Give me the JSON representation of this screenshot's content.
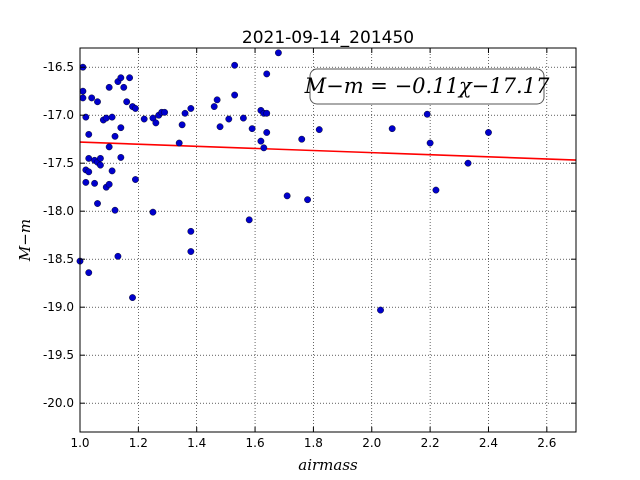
{
  "chart_data": {
    "type": "scatter",
    "title": "2021-09-14_201450",
    "xlabel": "airmass",
    "ylabel": "M−m",
    "xlim": [
      1.0,
      2.7
    ],
    "ylim": [
      -20.3,
      -16.3
    ],
    "y_inverted": true,
    "grid": true,
    "grid_style": "dotted",
    "x_ticks": [
      1.0,
      1.2,
      1.4,
      1.6,
      1.8,
      2.0,
      2.2,
      2.4,
      2.6
    ],
    "x_tick_labels": [
      "1.0",
      "1.2",
      "1.4",
      "1.6",
      "1.8",
      "2.0",
      "2.2",
      "2.4",
      "2.6"
    ],
    "y_ticks": [
      -16.5,
      -17.0,
      -17.5,
      -18.0,
      -18.5,
      -19.0,
      -19.5,
      -20.0
    ],
    "y_tick_labels": [
      "-16.5",
      "-17.0",
      "-17.5",
      "-18.0",
      "-18.5",
      "-19.0",
      "-19.5",
      "-20.0"
    ],
    "annotation": "M−m = −0.11χ−17.17",
    "annotation_position": "top-right",
    "fit_line": {
      "slope": -0.11,
      "intercept": -17.17,
      "color": "#ff0000"
    },
    "marker_color": "#0000cc",
    "series": [
      {
        "points": [
          [
            1.0,
            -18.52
          ],
          [
            1.01,
            -16.5
          ],
          [
            1.01,
            -16.75
          ],
          [
            1.01,
            -16.82
          ],
          [
            1.02,
            -17.57
          ],
          [
            1.02,
            -17.7
          ],
          [
            1.02,
            -17.02
          ],
          [
            1.03,
            -17.2
          ],
          [
            1.03,
            -17.45
          ],
          [
            1.03,
            -17.59
          ],
          [
            1.03,
            -18.64
          ],
          [
            1.04,
            -16.82
          ],
          [
            1.05,
            -17.47
          ],
          [
            1.05,
            -17.71
          ],
          [
            1.06,
            -17.49
          ],
          [
            1.06,
            -17.92
          ],
          [
            1.06,
            -16.86
          ],
          [
            1.07,
            -17.52
          ],
          [
            1.07,
            -17.45
          ],
          [
            1.08,
            -17.05
          ],
          [
            1.09,
            -17.75
          ],
          [
            1.09,
            -17.03
          ],
          [
            1.1,
            -17.72
          ],
          [
            1.1,
            -17.33
          ],
          [
            1.1,
            -16.71
          ],
          [
            1.11,
            -17.02
          ],
          [
            1.11,
            -17.58
          ],
          [
            1.12,
            -17.99
          ],
          [
            1.12,
            -17.22
          ],
          [
            1.13,
            -16.65
          ],
          [
            1.13,
            -18.47
          ],
          [
            1.14,
            -16.61
          ],
          [
            1.14,
            -17.13
          ],
          [
            1.14,
            -17.44
          ],
          [
            1.15,
            -16.71
          ],
          [
            1.16,
            -16.86
          ],
          [
            1.17,
            -16.61
          ],
          [
            1.18,
            -16.91
          ],
          [
            1.18,
            -18.9
          ],
          [
            1.19,
            -16.93
          ],
          [
            1.19,
            -17.67
          ],
          [
            1.22,
            -17.04
          ],
          [
            1.25,
            -18.01
          ],
          [
            1.25,
            -17.03
          ],
          [
            1.26,
            -17.08
          ],
          [
            1.27,
            -17.0
          ],
          [
            1.28,
            -16.97
          ],
          [
            1.29,
            -16.97
          ],
          [
            1.34,
            -17.29
          ],
          [
            1.35,
            -17.1
          ],
          [
            1.36,
            -16.98
          ],
          [
            1.38,
            -18.21
          ],
          [
            1.38,
            -18.42
          ],
          [
            1.38,
            -16.93
          ],
          [
            1.46,
            -16.91
          ],
          [
            1.47,
            -16.84
          ],
          [
            1.48,
            -17.12
          ],
          [
            1.51,
            -17.04
          ],
          [
            1.53,
            -16.79
          ],
          [
            1.53,
            -16.48
          ],
          [
            1.56,
            -17.03
          ],
          [
            1.58,
            -18.09
          ],
          [
            1.59,
            -17.14
          ],
          [
            1.62,
            -17.27
          ],
          [
            1.62,
            -16.95
          ],
          [
            1.63,
            -17.34
          ],
          [
            1.63,
            -16.98
          ],
          [
            1.64,
            -16.98
          ],
          [
            1.64,
            -17.18
          ],
          [
            1.64,
            -16.57
          ],
          [
            1.68,
            -16.35
          ],
          [
            1.71,
            -17.84
          ],
          [
            1.76,
            -17.25
          ],
          [
            1.78,
            -17.88
          ],
          [
            1.82,
            -17.15
          ],
          [
            2.03,
            -19.03
          ],
          [
            2.07,
            -17.14
          ],
          [
            2.19,
            -16.99
          ],
          [
            2.2,
            -17.29
          ],
          [
            2.22,
            -17.78
          ],
          [
            2.33,
            -17.5
          ],
          [
            2.4,
            -17.18
          ]
        ]
      }
    ]
  }
}
